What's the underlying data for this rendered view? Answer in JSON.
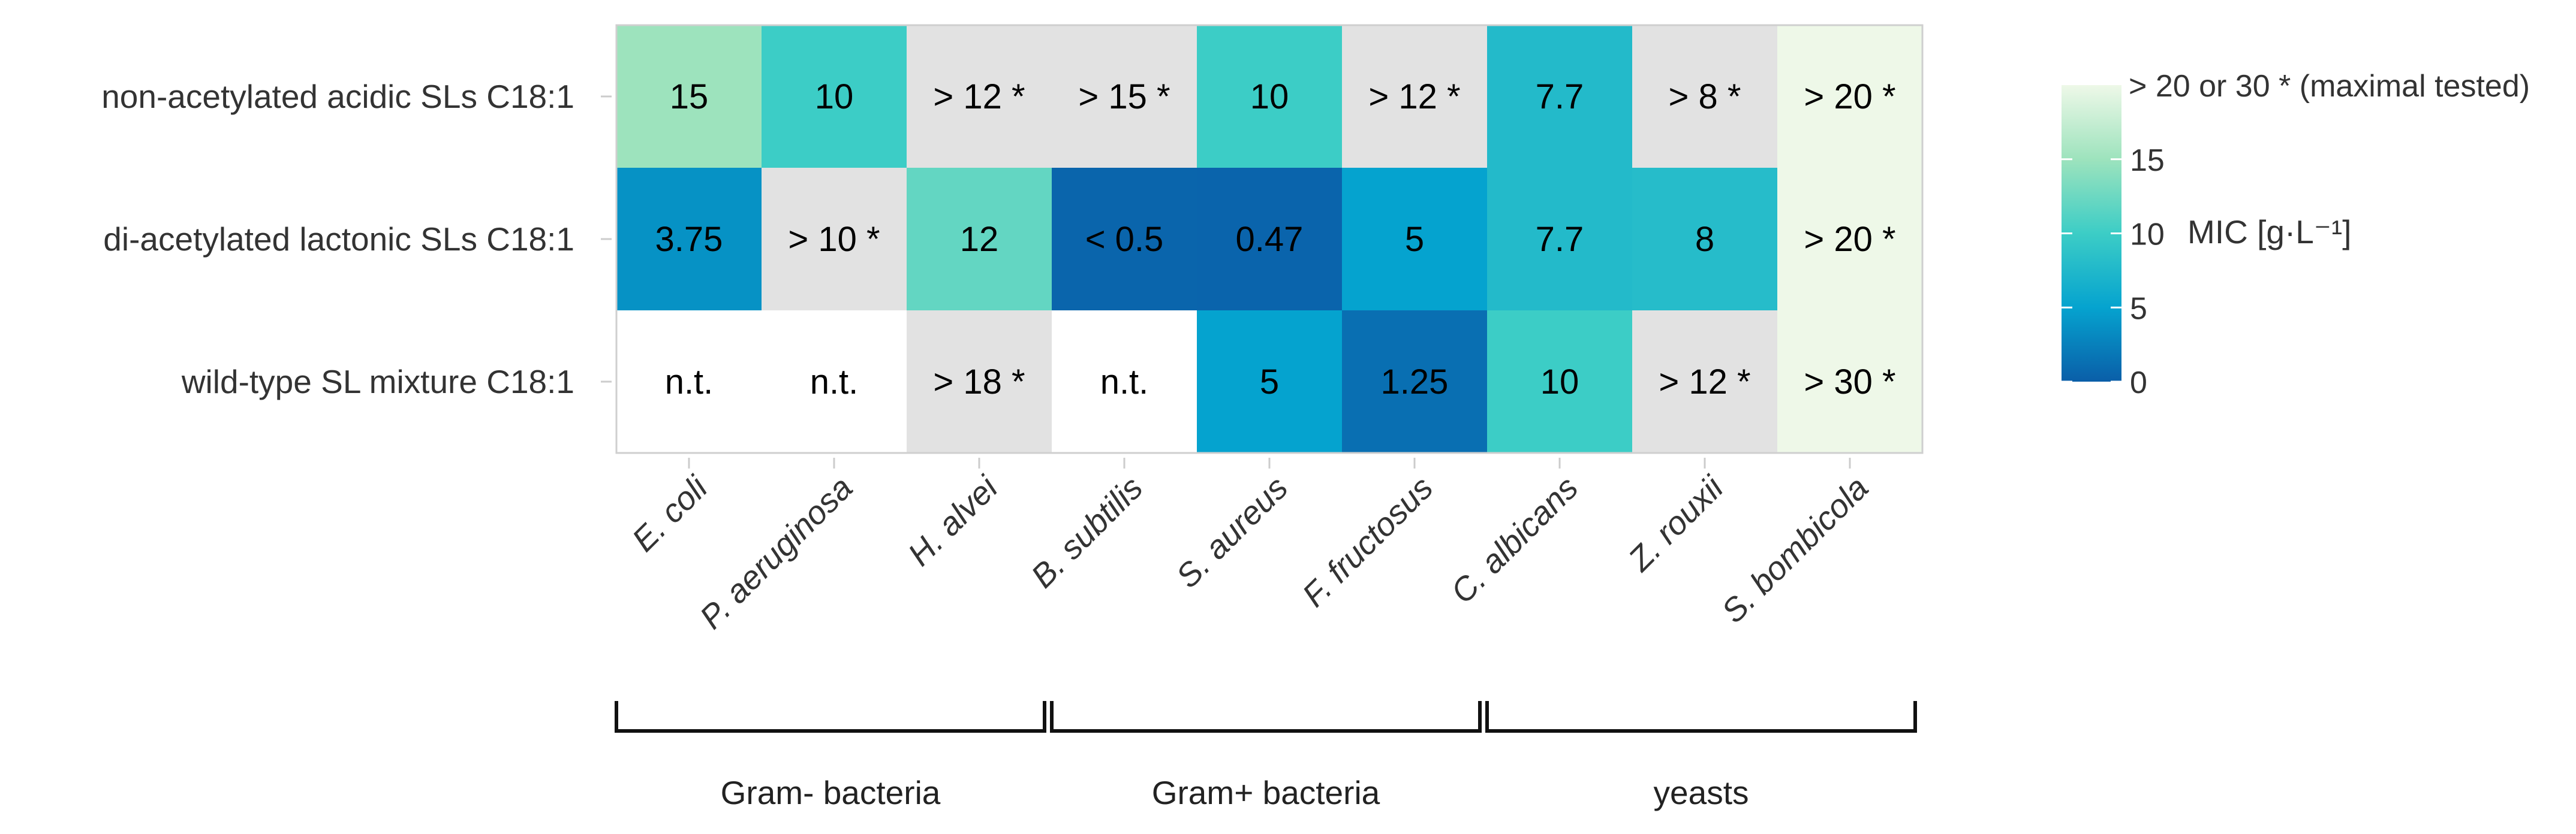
{
  "chart_data": {
    "type": "heatmap",
    "title": "",
    "rows": [
      "non-acetylated acidic SLs C18:1",
      "di-acetylated lactonic SLs C18:1",
      "wild-type SL mixture C18:1"
    ],
    "columns": [
      "E. coli",
      "P. aeruginosa",
      "H. alvei",
      "B. subtilis",
      "S. aureus",
      "F. fructosus",
      "C. albicans",
      "Z. rouxii",
      "S. bombicola"
    ],
    "cells": [
      [
        {
          "label": "15",
          "value": 15,
          "kind": "value"
        },
        {
          "label": "10",
          "value": 10,
          "kind": "value"
        },
        {
          "label": "> 12 *",
          "value": null,
          "kind": "gt"
        },
        {
          "label": "> 15 *",
          "value": null,
          "kind": "gt"
        },
        {
          "label": "10",
          "value": 10,
          "kind": "value"
        },
        {
          "label": "> 12 *",
          "value": null,
          "kind": "gt"
        },
        {
          "label": "7.7",
          "value": 7.7,
          "kind": "value"
        },
        {
          "label": "> 8 *",
          "value": null,
          "kind": "gt"
        },
        {
          "label": "> 20 *",
          "value": null,
          "kind": "max"
        }
      ],
      [
        {
          "label": "3.75",
          "value": 3.75,
          "kind": "value"
        },
        {
          "label": "> 10 *",
          "value": null,
          "kind": "gt"
        },
        {
          "label": "12",
          "value": 12,
          "kind": "value"
        },
        {
          "label": "< 0.5",
          "value": 0.5,
          "kind": "value"
        },
        {
          "label": "0.47",
          "value": 0.47,
          "kind": "value"
        },
        {
          "label": "5",
          "value": 5,
          "kind": "value"
        },
        {
          "label": "7.7",
          "value": 7.7,
          "kind": "value"
        },
        {
          "label": "8",
          "value": 8,
          "kind": "value"
        },
        {
          "label": "> 20 *",
          "value": null,
          "kind": "max"
        }
      ],
      [
        {
          "label": "n.t.",
          "value": null,
          "kind": "nt"
        },
        {
          "label": "n.t.",
          "value": null,
          "kind": "nt"
        },
        {
          "label": "> 18 *",
          "value": null,
          "kind": "gt"
        },
        {
          "label": "n.t.",
          "value": null,
          "kind": "nt"
        },
        {
          "label": "5",
          "value": 5,
          "kind": "value"
        },
        {
          "label": "1.25",
          "value": 1.25,
          "kind": "value"
        },
        {
          "label": "10",
          "value": 10,
          "kind": "value"
        },
        {
          "label": "> 12 *",
          "value": null,
          "kind": "gt"
        },
        {
          "label": "> 30 *",
          "value": null,
          "kind": "max"
        }
      ]
    ],
    "groups": [
      {
        "label": "Gram- bacteria",
        "from": 0,
        "to": 2
      },
      {
        "label": "Gram+ bacteria",
        "from": 3,
        "to": 5
      },
      {
        "label": "yeasts",
        "from": 6,
        "to": 8
      }
    ],
    "legend": {
      "title": "MIC [g·L⁻¹]",
      "max_label": "> 20 or 30 * (maximal tested)",
      "ticks": [
        0,
        5,
        10,
        15
      ],
      "range": [
        0,
        20
      ],
      "placement": "right"
    },
    "colors": {
      "scale": [
        {
          "v": 0,
          "c": "#0a5ea8"
        },
        {
          "v": 5,
          "c": "#05a3cf"
        },
        {
          "v": 10,
          "c": "#3ccdc6"
        },
        {
          "v": 15,
          "c": "#9de3bd"
        },
        {
          "v": 20,
          "c": "#eef8e8"
        }
      ],
      "gt": "#e2e2e2",
      "max": "#eef8e8",
      "nt": "#ffffff",
      "border": "#cfcfcf"
    }
  }
}
